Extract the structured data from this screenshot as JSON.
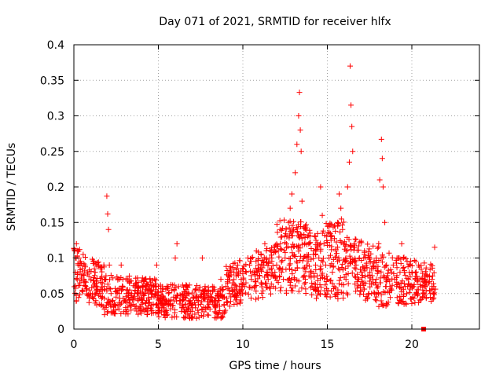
{
  "chart_data": {
    "type": "scatter",
    "title": "Day 071 of 2021, SRMTID for receiver hlfx",
    "xlabel": "GPS time / hours",
    "ylabel": "SRMTID / TECUs",
    "xlim": [
      0,
      24
    ],
    "ylim": [
      0,
      0.4
    ],
    "x_ticks": [
      0,
      5,
      10,
      15,
      20
    ],
    "x_tick_labels": [
      "0",
      "5",
      "10",
      "15",
      "20"
    ],
    "y_ticks": [
      0,
      0.05,
      0.1,
      0.15,
      0.2,
      0.25,
      0.3,
      0.35,
      0.4
    ],
    "y_tick_labels": [
      "0",
      "0.05",
      "0.1",
      "0.15",
      "0.2",
      "0.25",
      "0.3",
      "0.35",
      "0.4"
    ],
    "grid": true,
    "marker": "+",
    "marker_color": "#ff0000",
    "series": [
      {
        "name": "SRMTID",
        "points": [
          [
            0.05,
            0.11
          ],
          [
            0.1,
            0.08
          ],
          [
            0.15,
            0.12
          ],
          [
            0.2,
            0.07
          ],
          [
            0.25,
            0.09
          ],
          [
            0.3,
            0.1
          ],
          [
            0.35,
            0.065
          ],
          [
            0.4,
            0.095
          ],
          [
            0.45,
            0.075
          ],
          [
            0.5,
            0.085
          ],
          [
            0.55,
            0.105
          ],
          [
            0.6,
            0.07
          ],
          [
            0.65,
            0.09
          ],
          [
            0.7,
            0.06
          ],
          [
            0.8,
            0.08
          ],
          [
            0.9,
            0.055
          ],
          [
            1.0,
            0.05
          ],
          [
            1.1,
            0.045
          ],
          [
            1.2,
            0.06
          ],
          [
            1.3,
            0.04
          ],
          [
            1.4,
            0.055
          ],
          [
            1.5,
            0.035
          ],
          [
            1.6,
            0.05
          ],
          [
            1.7,
            0.045
          ],
          [
            1.8,
            0.06
          ],
          [
            1.9,
            0.075
          ],
          [
            1.95,
            0.187
          ],
          [
            2.0,
            0.162
          ],
          [
            2.05,
            0.14
          ],
          [
            2.1,
            0.09
          ],
          [
            2.2,
            0.05
          ],
          [
            2.3,
            0.04
          ],
          [
            2.4,
            0.035
          ],
          [
            2.5,
            0.045
          ],
          [
            2.6,
            0.055
          ],
          [
            2.7,
            0.07
          ],
          [
            2.8,
            0.09
          ],
          [
            2.9,
            0.06
          ],
          [
            3.0,
            0.04
          ],
          [
            3.1,
            0.05
          ],
          [
            3.2,
            0.07
          ],
          [
            3.3,
            0.055
          ],
          [
            3.4,
            0.045
          ],
          [
            3.5,
            0.035
          ],
          [
            3.6,
            0.05
          ],
          [
            3.7,
            0.065
          ],
          [
            3.8,
            0.04
          ],
          [
            3.9,
            0.03
          ],
          [
            4.0,
            0.045
          ],
          [
            4.1,
            0.06
          ],
          [
            4.2,
            0.05
          ],
          [
            4.3,
            0.04
          ],
          [
            4.4,
            0.055
          ],
          [
            4.5,
            0.07
          ],
          [
            4.6,
            0.045
          ],
          [
            4.7,
            0.035
          ],
          [
            4.8,
            0.05
          ],
          [
            4.9,
            0.09
          ],
          [
            5.0,
            0.06
          ],
          [
            5.1,
            0.04
          ],
          [
            5.2,
            0.03
          ],
          [
            5.3,
            0.045
          ],
          [
            5.4,
            0.025
          ],
          [
            5.5,
            0.04
          ],
          [
            5.6,
            0.05
          ],
          [
            5.7,
            0.035
          ],
          [
            5.8,
            0.055
          ],
          [
            5.9,
            0.045
          ],
          [
            6.0,
            0.1
          ],
          [
            6.1,
            0.12
          ],
          [
            6.2,
            0.06
          ],
          [
            6.3,
            0.04
          ],
          [
            6.4,
            0.03
          ],
          [
            6.5,
            0.045
          ],
          [
            6.6,
            0.035
          ],
          [
            6.7,
            0.05
          ],
          [
            6.8,
            0.04
          ],
          [
            6.9,
            0.025
          ],
          [
            7.0,
            0.035
          ],
          [
            7.1,
            0.045
          ],
          [
            7.2,
            0.03
          ],
          [
            7.3,
            0.04
          ],
          [
            7.4,
            0.055
          ],
          [
            7.5,
            0.035
          ],
          [
            7.6,
            0.1
          ],
          [
            7.7,
            0.045
          ],
          [
            7.8,
            0.03
          ],
          [
            7.9,
            0.02
          ],
          [
            8.0,
            0.035
          ],
          [
            8.1,
            0.045
          ],
          [
            8.2,
            0.06
          ],
          [
            8.3,
            0.04
          ],
          [
            8.4,
            0.03
          ],
          [
            8.5,
            0.05
          ],
          [
            8.6,
            0.04
          ],
          [
            8.7,
            0.07
          ],
          [
            8.8,
            0.055
          ],
          [
            8.9,
            0.045
          ],
          [
            9.0,
            0.06
          ],
          [
            9.1,
            0.07
          ],
          [
            9.2,
            0.05
          ],
          [
            9.3,
            0.08
          ],
          [
            9.4,
            0.065
          ],
          [
            9.5,
            0.055
          ],
          [
            9.6,
            0.075
          ],
          [
            9.7,
            0.09
          ],
          [
            9.8,
            0.06
          ],
          [
            9.9,
            0.07
          ],
          [
            10.0,
            0.085
          ],
          [
            10.1,
            0.06
          ],
          [
            10.2,
            0.08
          ],
          [
            10.3,
            0.1
          ],
          [
            10.4,
            0.09
          ],
          [
            10.5,
            0.07
          ],
          [
            10.6,
            0.08
          ],
          [
            10.7,
            0.06
          ],
          [
            10.8,
            0.11
          ],
          [
            10.9,
            0.09
          ],
          [
            11.0,
            0.075
          ],
          [
            11.1,
            0.065
          ],
          [
            11.2,
            0.095
          ],
          [
            11.3,
            0.12
          ],
          [
            11.4,
            0.08
          ],
          [
            11.5,
            0.07
          ],
          [
            11.6,
            0.1
          ],
          [
            11.7,
            0.085
          ],
          [
            11.8,
            0.06
          ],
          [
            11.9,
            0.075
          ],
          [
            12.0,
            0.09
          ],
          [
            12.1,
            0.11
          ],
          [
            12.2,
            0.14
          ],
          [
            12.3,
            0.08
          ],
          [
            12.4,
            0.07
          ],
          [
            12.5,
            0.1
          ],
          [
            12.6,
            0.13
          ],
          [
            12.7,
            0.15
          ],
          [
            12.8,
            0.17
          ],
          [
            12.9,
            0.19
          ],
          [
            13.0,
            0.14
          ],
          [
            13.1,
            0.22
          ],
          [
            13.2,
            0.26
          ],
          [
            13.3,
            0.3
          ],
          [
            13.35,
            0.333
          ],
          [
            13.4,
            0.28
          ],
          [
            13.45,
            0.25
          ],
          [
            13.5,
            0.18
          ],
          [
            13.6,
            0.1
          ],
          [
            13.7,
            0.07
          ],
          [
            13.8,
            0.09
          ],
          [
            13.9,
            0.12
          ],
          [
            14.0,
            0.08
          ],
          [
            14.1,
            0.06
          ],
          [
            14.2,
            0.11
          ],
          [
            14.3,
            0.09
          ],
          [
            14.4,
            0.075
          ],
          [
            14.5,
            0.1
          ],
          [
            14.6,
            0.2
          ],
          [
            14.7,
            0.16
          ],
          [
            14.8,
            0.12
          ],
          [
            14.9,
            0.09
          ],
          [
            15.0,
            0.07
          ],
          [
            15.1,
            0.1
          ],
          [
            15.2,
            0.13
          ],
          [
            15.3,
            0.08
          ],
          [
            15.4,
            0.06
          ],
          [
            15.5,
            0.11
          ],
          [
            15.6,
            0.15
          ],
          [
            15.7,
            0.19
          ],
          [
            15.8,
            0.17
          ],
          [
            15.9,
            0.14
          ],
          [
            16.0,
            0.12
          ],
          [
            16.1,
            0.1
          ],
          [
            16.2,
            0.2
          ],
          [
            16.3,
            0.235
          ],
          [
            16.35,
            0.37
          ],
          [
            16.4,
            0.315
          ],
          [
            16.45,
            0.285
          ],
          [
            16.5,
            0.25
          ],
          [
            16.6,
            0.12
          ],
          [
            16.7,
            0.09
          ],
          [
            16.8,
            0.07
          ],
          [
            16.9,
            0.1
          ],
          [
            17.0,
            0.08
          ],
          [
            17.1,
            0.065
          ],
          [
            17.2,
            0.11
          ],
          [
            17.3,
            0.09
          ],
          [
            17.4,
            0.075
          ],
          [
            17.5,
            0.1
          ],
          [
            17.6,
            0.085
          ],
          [
            17.7,
            0.07
          ],
          [
            17.8,
            0.05
          ],
          [
            17.9,
            0.04
          ],
          [
            18.0,
            0.06
          ],
          [
            18.1,
            0.21
          ],
          [
            18.2,
            0.267
          ],
          [
            18.25,
            0.24
          ],
          [
            18.3,
            0.2
          ],
          [
            18.4,
            0.15
          ],
          [
            18.5,
            0.09
          ],
          [
            18.6,
            0.07
          ],
          [
            18.7,
            0.06
          ],
          [
            18.8,
            0.08
          ],
          [
            18.9,
            0.09
          ],
          [
            19.0,
            0.07
          ],
          [
            19.1,
            0.06
          ],
          [
            19.2,
            0.1
          ],
          [
            19.3,
            0.08
          ],
          [
            19.4,
            0.12
          ],
          [
            19.5,
            0.1
          ],
          [
            19.6,
            0.06
          ],
          [
            19.7,
            0.05
          ],
          [
            19.8,
            0.07
          ],
          [
            19.9,
            0.06
          ],
          [
            20.0,
            0.08
          ],
          [
            20.1,
            0.06
          ],
          [
            20.2,
            0.07
          ],
          [
            20.3,
            0.05
          ],
          [
            20.4,
            0.09
          ],
          [
            20.5,
            0.06
          ],
          [
            20.6,
            0.07
          ],
          [
            20.7,
            0.05
          ],
          [
            20.8,
            0.06
          ],
          [
            20.9,
            0.075
          ],
          [
            21.0,
            0.065
          ],
          [
            21.1,
            0.05
          ],
          [
            21.2,
            0.07
          ],
          [
            21.3,
            0.06
          ],
          [
            21.35,
            0.115
          ]
        ]
      }
    ],
    "noise_bands": [
      {
        "x": [
          0,
          1.8
        ],
        "ylo": [
          0.04,
          0.03
        ],
        "yhi": [
          0.12,
          0.09
        ],
        "count": 120
      },
      {
        "x": [
          1.8,
          5.0
        ],
        "ylo": [
          0.02,
          0.02
        ],
        "yhi": [
          0.08,
          0.07
        ],
        "count": 220
      },
      {
        "x": [
          5.0,
          9.0
        ],
        "ylo": [
          0.015,
          0.015
        ],
        "yhi": [
          0.065,
          0.06
        ],
        "count": 260
      },
      {
        "x": [
          9.0,
          12.0
        ],
        "ylo": [
          0.03,
          0.05
        ],
        "yhi": [
          0.09,
          0.12
        ],
        "count": 180
      },
      {
        "x": [
          12.0,
          14.0
        ],
        "ylo": [
          0.05,
          0.05
        ],
        "yhi": [
          0.16,
          0.15
        ],
        "count": 150
      },
      {
        "x": [
          14.0,
          16.0
        ],
        "ylo": [
          0.04,
          0.04
        ],
        "yhi": [
          0.14,
          0.16
        ],
        "count": 150
      },
      {
        "x": [
          16.0,
          18.2
        ],
        "ylo": [
          0.05,
          0.03
        ],
        "yhi": [
          0.13,
          0.12
        ],
        "count": 150
      },
      {
        "x": [
          18.2,
          21.4
        ],
        "ylo": [
          0.03,
          0.04
        ],
        "yhi": [
          0.11,
          0.09
        ],
        "count": 180
      }
    ],
    "extra_marks": [
      {
        "x": 20.7,
        "y": 0.0,
        "shape": "square"
      }
    ]
  }
}
